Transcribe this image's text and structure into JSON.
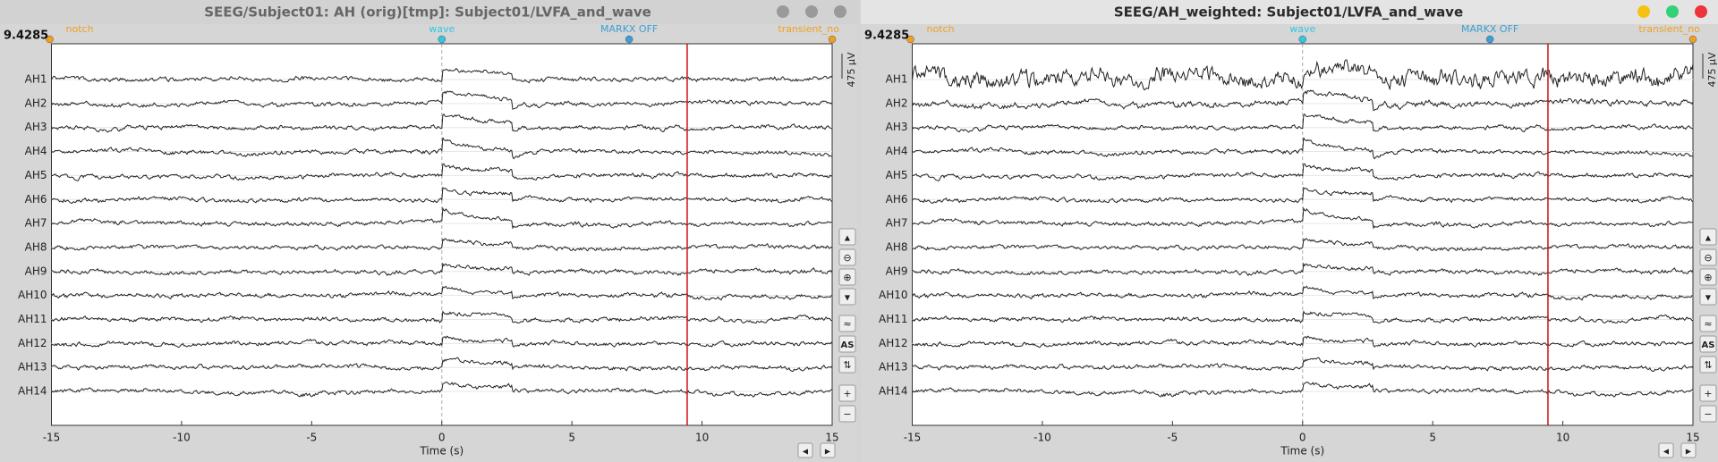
{
  "windows": [
    {
      "title": "SEEG/Subject01: AH (orig)[tmp]: Subject01/LVFA_and_wave",
      "active": false,
      "cursor_time": 9.4285,
      "events": [
        "notch",
        "wave",
        "MARKX OFF",
        "transient_no"
      ],
      "channels": [
        "AH1",
        "AH2",
        "AH3",
        "AH4",
        "AH5",
        "AH6",
        "AH7",
        "AH8",
        "AH9",
        "AH10",
        "AH11",
        "AH12",
        "AH13",
        "AH14"
      ],
      "x_ticks": [
        -15,
        -10,
        -5,
        0,
        5,
        10,
        15
      ],
      "x_label": "Time (s)",
      "scale_label": "475 μV",
      "autoscale_label": "AS"
    },
    {
      "title": "SEEG/AH_weighted: Subject01/LVFA_and_wave",
      "active": true,
      "cursor_time": 9.4285,
      "events": [
        "notch",
        "wave",
        "MARKX OFF",
        "transient_no"
      ],
      "channels": [
        "AH1",
        "AH2",
        "AH3",
        "AH4",
        "AH5",
        "AH6",
        "AH7",
        "AH8",
        "AH9",
        "AH10",
        "AH11",
        "AH12",
        "AH13",
        "AH14"
      ],
      "x_ticks": [
        -15,
        -10,
        -5,
        0,
        5,
        10,
        15
      ],
      "x_label": "Time (s)",
      "scale_label": "475 μV",
      "autoscale_label": "AS"
    }
  ]
}
